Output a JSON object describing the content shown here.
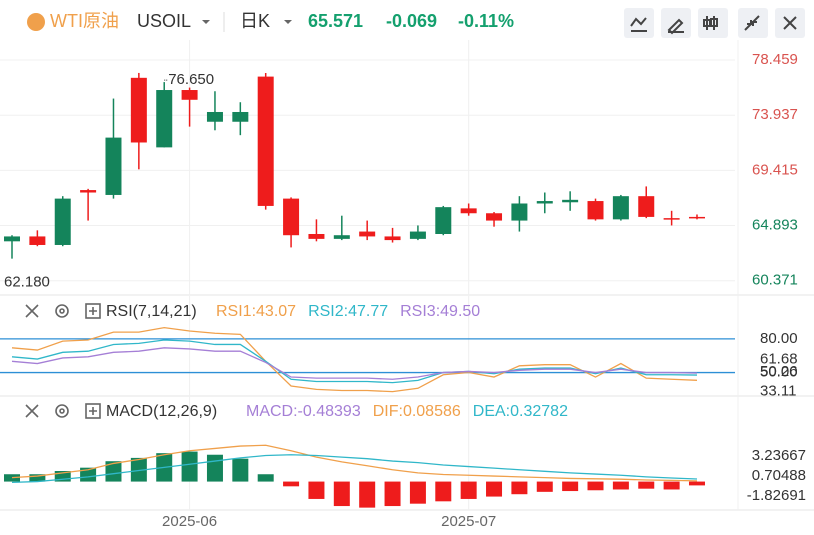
{
  "header": {
    "symbol": "WTI原油",
    "code": "USOIL",
    "period": "日K",
    "price": "65.571",
    "change": "-0.069",
    "change_pct": "-0.11%"
  },
  "chart_data": [
    {
      "type": "candlestick",
      "categories": [
        null,
        null,
        null,
        null,
        null,
        null,
        null,
        "2025-06",
        null,
        null,
        null,
        null,
        null,
        null,
        null,
        null,
        null,
        null,
        "2025-07",
        null,
        null,
        null,
        null,
        null,
        null,
        null,
        null,
        null
      ],
      "open": [
        63.6,
        64.0,
        63.3,
        67.8,
        67.4,
        77.0,
        71.3,
        76.0,
        73.4,
        73.4,
        77.1,
        67.1,
        64.2,
        63.8,
        64.4,
        64.0,
        63.8,
        64.2,
        66.3,
        65.9,
        65.3,
        66.7,
        66.8,
        66.9,
        65.4,
        67.3,
        65.5,
        65.6
      ],
      "high": [
        64.1,
        64.5,
        67.3,
        67.9,
        75.3,
        77.4,
        76.65,
        76.2,
        75.9,
        75.0,
        77.4,
        67.2,
        65.4,
        65.7,
        65.3,
        64.7,
        64.9,
        66.5,
        66.7,
        66.0,
        67.3,
        67.6,
        67.7,
        67.1,
        67.4,
        68.1,
        66.1,
        65.8
      ],
      "low": [
        62.18,
        63.2,
        63.2,
        65.3,
        67.1,
        69.5,
        71.3,
        73.0,
        72.7,
        72.3,
        66.2,
        63.1,
        63.6,
        63.7,
        63.7,
        63.5,
        63.7,
        64.1,
        65.7,
        64.8,
        64.4,
        65.9,
        66.1,
        65.3,
        65.3,
        65.5,
        64.9,
        65.4
      ],
      "close": [
        64.0,
        63.3,
        67.1,
        67.6,
        72.1,
        71.7,
        76.0,
        75.2,
        74.2,
        74.2,
        66.5,
        64.1,
        63.8,
        64.1,
        64.0,
        63.7,
        64.4,
        66.4,
        65.9,
        65.3,
        66.7,
        66.9,
        67.0,
        65.4,
        67.3,
        65.6,
        65.4,
        65.571
      ],
      "up_color": "#14845b",
      "down_color": "#ee1c1c",
      "ylim": [
        59.2,
        80.1
      ],
      "yticks": [
        {
          "value": 78.459,
          "label": "78.459"
        },
        {
          "value": 73.937,
          "label": "73.937"
        },
        {
          "value": 69.415,
          "label": "69.415"
        },
        {
          "value": 64.893,
          "label": "64.893"
        },
        {
          "value": 60.371,
          "label": "60.371"
        }
      ],
      "annotations": [
        {
          "text": "76.650",
          "index": 6,
          "value": 76.65
        },
        {
          "text": "62.180",
          "index": 0,
          "value": 62.18
        }
      ],
      "grid": true
    },
    {
      "type": "line",
      "title": "RSI(7,14,21)",
      "series": [
        {
          "name": "RSI1:43.07",
          "color": "#f0a04b",
          "values": [
            72,
            70,
            78,
            79,
            86,
            86,
            90,
            87,
            85,
            84,
            60,
            38,
            35,
            34,
            34,
            33,
            36,
            48,
            50,
            46,
            56,
            57,
            57,
            46,
            58,
            45,
            44,
            43.07
          ]
        },
        {
          "name": "RSI2:47.77",
          "color": "#30b7c9",
          "values": [
            64,
            62,
            68,
            69,
            75,
            76,
            79,
            78,
            75,
            75,
            60,
            44,
            42,
            42,
            42,
            41,
            43,
            50,
            51,
            49,
            53,
            54,
            54,
            49,
            54,
            48,
            48,
            47.77
          ]
        },
        {
          "name": "RSI3:49.50",
          "color": "#a57fd6",
          "values": [
            60,
            58,
            63,
            64,
            68,
            69,
            72,
            71,
            69,
            69,
            59,
            46,
            45,
            45,
            45,
            44,
            46,
            50,
            51,
            50,
            52,
            53,
            53,
            50,
            53,
            50,
            50,
            49.5
          ]
        }
      ],
      "ylim": [
        30,
        95
      ],
      "yticks": [
        {
          "value": 80,
          "label": "80.00"
        },
        {
          "value": 50.26,
          "label": "50.26"
        },
        61.68,
        {
          "value": 50,
          "label": "50.00"
        },
        33.11
      ],
      "reference_lines": [
        80,
        50
      ],
      "reference_color": "#2d8fd6"
    },
    {
      "type": "macd",
      "title": "MACD(12,26,9)",
      "series": [
        {
          "name": "MACD:-0.48393",
          "color": "#a57fd6",
          "values": [
            0.93,
            0.93,
            1.34,
            1.76,
            2.58,
            3.0,
            3.6,
            3.8,
            3.4,
            2.9,
            0.93,
            -0.6,
            -2.2,
            -3.1,
            -3.3,
            -3.1,
            -2.8,
            -2.5,
            -2.2,
            -1.9,
            -1.6,
            -1.3,
            -1.2,
            -1.1,
            -1.0,
            -0.9,
            -1.0,
            -0.48393
          ]
        },
        {
          "name": "DIF:0.08586",
          "color": "#f0a04b",
          "values": [
            0.5,
            0.7,
            1.1,
            1.5,
            2.3,
            2.8,
            3.4,
            3.9,
            4.2,
            4.5,
            4.6,
            3.9,
            3.1,
            2.5,
            2.0,
            1.5,
            1.1,
            0.9,
            0.8,
            0.7,
            0.6,
            0.5,
            0.4,
            0.35,
            0.3,
            0.2,
            0.15,
            0.08586
          ]
        },
        {
          "name": "DEA:0.32782",
          "color": "#30b7c9",
          "values": [
            -0.1,
            0.0,
            0.3,
            0.6,
            1.0,
            1.4,
            1.8,
            2.2,
            2.6,
            3.0,
            3.3,
            3.4,
            3.3,
            3.1,
            2.9,
            2.6,
            2.4,
            2.1,
            1.9,
            1.7,
            1.5,
            1.3,
            1.1,
            0.95,
            0.8,
            0.6,
            0.45,
            0.32782
          ]
        }
      ],
      "ylim": [
        -3.6,
        7.8
      ],
      "yticks": [
        {
          "value": 3.23667,
          "label": "3.23667"
        },
        {
          "value": 0.70488,
          "label": "0.70488"
        },
        {
          "value": -1.82691,
          "label": "-1.82691"
        }
      ],
      "up_color": "#14845b",
      "down_color": "#ee1c1c"
    }
  ]
}
